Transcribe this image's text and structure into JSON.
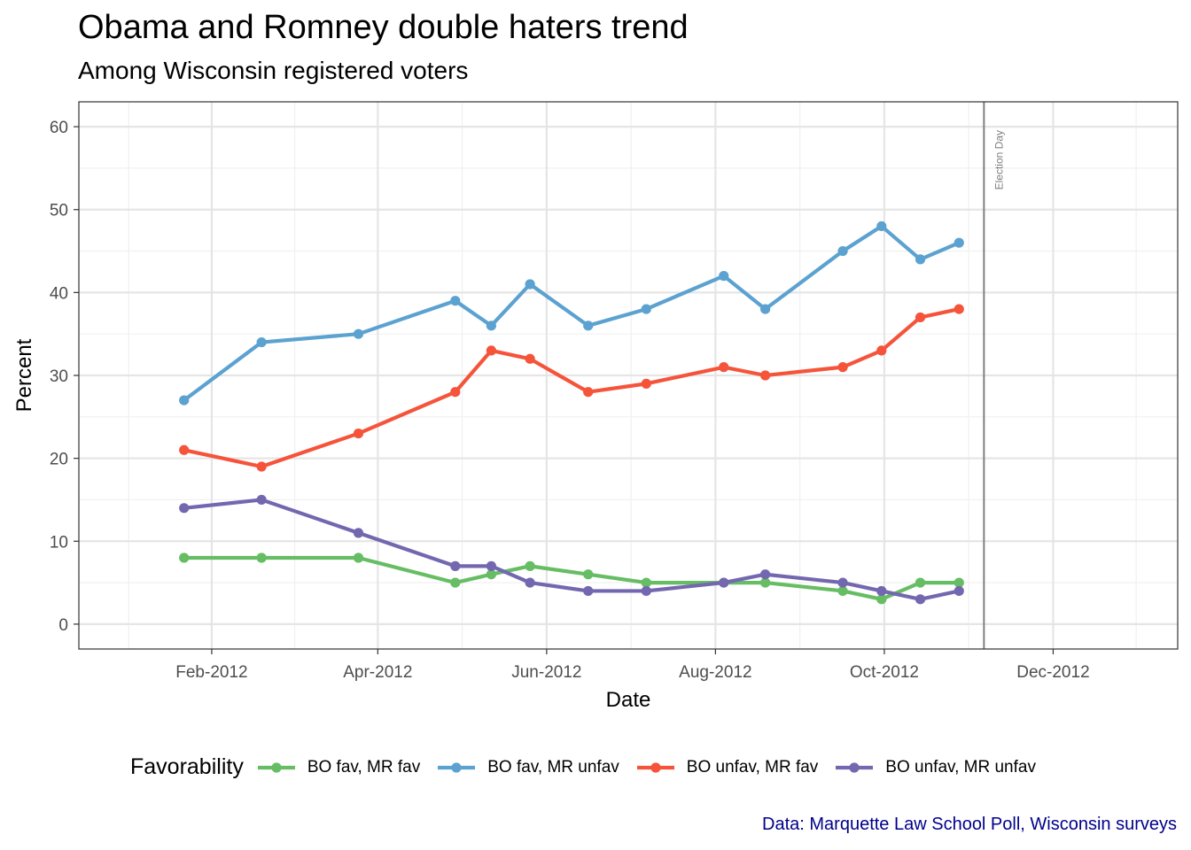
{
  "title": "Obama and Romney double haters trend",
  "subtitle": "Among Wisconsin registered voters",
  "caption": "Data: Marquette Law School Poll, Wisconsin surveys",
  "chart_data": {
    "type": "line",
    "xlabel": "Date",
    "ylabel": "Percent",
    "x_axis_type": "date",
    "xlim": [
      "2011-12-15",
      "2013-01-15"
    ],
    "ylim": [
      -3,
      63
    ],
    "x_ticks": [
      {
        "date": "2012-02-01",
        "label": "Feb-2012"
      },
      {
        "date": "2012-04-01",
        "label": "Apr-2012"
      },
      {
        "date": "2012-06-01",
        "label": "Jun-2012"
      },
      {
        "date": "2012-08-01",
        "label": "Aug-2012"
      },
      {
        "date": "2012-10-01",
        "label": "Oct-2012"
      },
      {
        "date": "2012-12-01",
        "label": "Dec-2012"
      }
    ],
    "y_ticks": [
      0,
      10,
      20,
      30,
      40,
      50,
      60
    ],
    "grid": true,
    "legend_title": "Favorability",
    "legend_position": "bottom",
    "annotation": {
      "date": "2012-11-06",
      "label": "Election Day"
    },
    "x": [
      "2012-01-22",
      "2012-02-19",
      "2012-03-25",
      "2012-04-29",
      "2012-05-12",
      "2012-05-26",
      "2012-06-16",
      "2012-07-07",
      "2012-08-04",
      "2012-08-19",
      "2012-09-16",
      "2012-09-30",
      "2012-10-14",
      "2012-10-28"
    ],
    "series": [
      {
        "name": "BO fav, MR fav",
        "color": "#66bd63",
        "values": [
          8,
          8,
          8,
          5,
          6,
          7,
          6,
          5,
          5,
          5,
          4,
          3,
          5,
          5
        ]
      },
      {
        "name": "BO fav, MR unfav",
        "color": "#5ca2d0",
        "values": [
          27,
          34,
          35,
          39,
          36,
          41,
          36,
          38,
          42,
          38,
          45,
          48,
          44,
          46
        ]
      },
      {
        "name": "BO unfav, MR fav",
        "color": "#f5543b",
        "values": [
          21,
          19,
          23,
          28,
          33,
          32,
          28,
          29,
          31,
          30,
          31,
          33,
          37,
          38
        ]
      },
      {
        "name": "BO unfav, MR unfav",
        "color": "#7368b0",
        "values": [
          14,
          15,
          11,
          7,
          7,
          5,
          4,
          4,
          5,
          6,
          5,
          4,
          3,
          4
        ]
      }
    ]
  }
}
